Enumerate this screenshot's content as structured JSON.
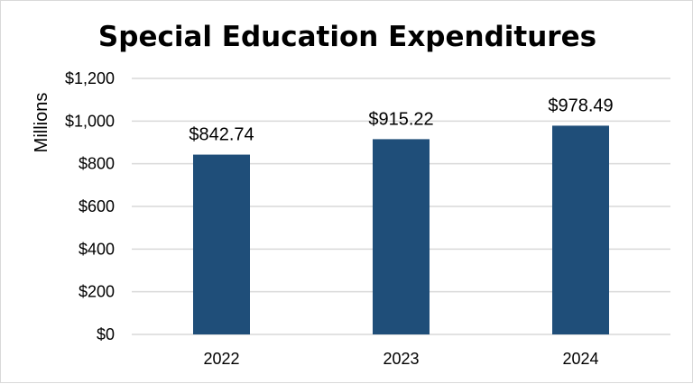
{
  "chart_data": {
    "type": "bar",
    "title": "Special Education Expenditures",
    "ylabel": "Millions",
    "xlabel": "",
    "categories": [
      "2022",
      "2023",
      "2024"
    ],
    "values": [
      842.74,
      915.22,
      978.49
    ],
    "value_labels": [
      "$842.74",
      "$915.22",
      "$978.49"
    ],
    "ylim": [
      0,
      1200
    ],
    "yticks": [
      0,
      200,
      400,
      600,
      800,
      1000,
      1200
    ],
    "ytick_labels": [
      "$0",
      "$200",
      "$400",
      "$600",
      "$800",
      "$1,000",
      "$1,200"
    ],
    "grid": true,
    "legend": "none",
    "colors": {
      "bar": "#1f4e79",
      "grid": "#d9d9d9",
      "text": "#000000",
      "border": "#d9d9d9"
    }
  }
}
